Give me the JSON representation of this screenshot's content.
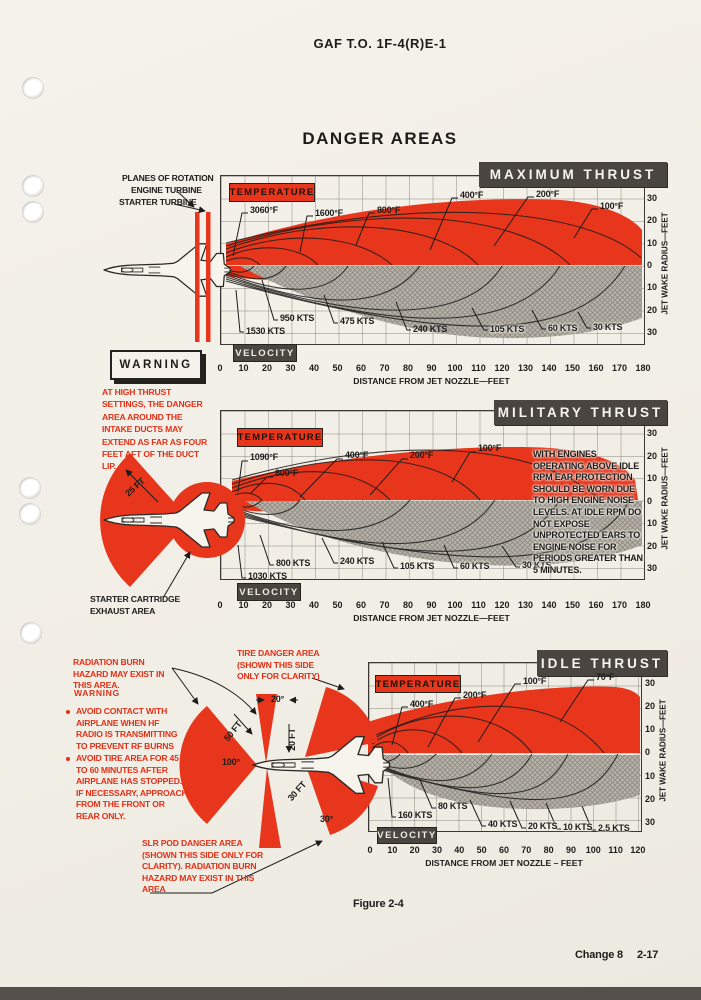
{
  "page": {
    "header": "GAF T.O. 1F-4(R)E-1",
    "title": "DANGER AREAS",
    "figure_caption": "Figure 2-4",
    "footer_change": "Change 8",
    "footer_page": "2-17"
  },
  "shared": {
    "temperature": "TEMPERATURE",
    "velocity": "VELOCITY",
    "x_axis_label": "DISTANCE FROM JET NOZZLE—FEET",
    "x_axis_label_idle": "DISTANCE FROM JET NOZZLE – FEET",
    "y_axis_label": "JET WAKE RADIUS—FEET"
  },
  "max": {
    "title": "MAXIMUM THRUST",
    "rotation_label_1": "PLANES OF ROTATION",
    "rotation_label_2": "ENGINE TURBINE",
    "rotation_label_3": "STARTER TURBINE",
    "temps": [
      "3060°F",
      "1600°F",
      "800°F",
      "400°F",
      "200°F",
      "100°F"
    ],
    "vels": [
      "1530 KTS",
      "950 KTS",
      "475 KTS",
      "240 KTS",
      "105 KTS",
      "60 KTS",
      "30 KTS"
    ],
    "x_ticks": [
      "0",
      "10",
      "20",
      "30",
      "40",
      "50",
      "60",
      "70",
      "80",
      "90",
      "100",
      "110",
      "120",
      "130",
      "140",
      "150",
      "160",
      "170",
      "180"
    ],
    "y_ticks": [
      "30",
      "20",
      "10",
      "0",
      "10",
      "20",
      "30"
    ],
    "warning_title": "WARNING",
    "warning_text": "AT HIGH THRUST SETTINGS, THE DANGER AREA AROUND THE INTAKE DUCTS MAY EXTEND AS FAR AS FOUR FEET AFT OF THE DUCT LIP."
  },
  "mil": {
    "title": "MILITARY THRUST",
    "temps": [
      "1090°F",
      "800°F",
      "400°F",
      "200°F",
      "100°F"
    ],
    "vels": [
      "1030 KTS",
      "800 KTS",
      "240 KTS",
      "105 KTS",
      "60 KTS",
      "30 KTS"
    ],
    "x_ticks": [
      "0",
      "10",
      "20",
      "30",
      "40",
      "50",
      "60",
      "70",
      "80",
      "90",
      "100",
      "110",
      "120",
      "130",
      "140",
      "150",
      "160",
      "170",
      "180"
    ],
    "y_ticks": [
      "30",
      "20",
      "10",
      "0",
      "10",
      "20",
      "30"
    ],
    "noise_note": "WITH ENGINES OPERATING ABOVE IDLE RPM EAR PROTECTION SHOULD BE WORN DUE TO HIGH ENGINE NOISE LEVELS. AT IDLE RPM DO NOT EXPOSE UNPROTECTED EARS TO ENGINE NOISE FOR PERIODS GREATER THAN 5 MINUTES.",
    "fan_radius_label": "25 FT",
    "starter_label_1": "STARTER CARTRIDGE",
    "starter_label_2": "EXHAUST AREA"
  },
  "idle": {
    "title": "IDLE THRUST",
    "temps": [
      "400°F",
      "200°F",
      "100°F",
      "70°F"
    ],
    "vels": [
      "160 KTS",
      "80 KTS",
      "40 KTS",
      "20 KTS",
      "10 KTS",
      "2.5 KTS"
    ],
    "x_ticks": [
      "0",
      "10",
      "20",
      "30",
      "40",
      "50",
      "60",
      "70",
      "80",
      "90",
      "100",
      "110",
      "120"
    ],
    "y_ticks": [
      "30",
      "20",
      "10",
      "0",
      "10",
      "20",
      "30"
    ],
    "radiation_label": "RADIATION BURN HAZARD MAY EXIST IN THIS AREA.",
    "tire_label": "TIRE DANGER AREA (SHOWN THIS SIDE ONLY FOR CLARITY)",
    "warning_title": "WARNING",
    "bullet_1": "AVOID CONTACT WITH AIRPLANE WHEN HF RADIO IS TRANSMITTING TO PREVENT RF BURNS",
    "bullet_2": "AVOID TIRE AREA FOR 45 TO 60 MINUTES AFTER AIRPLANE HAS STOPPED. IF NECESSARY, APPROACH FROM THE FRONT OR REAR ONLY.",
    "slr_label": "SLR POD DANGER AREA (SHOWN THIS SIDE ONLY FOR CLARITY). RADIATION BURN HAZARD MAY EXIST IN THIS AREA",
    "angle_tire": "20°",
    "angle_front": "100°",
    "angle_slr": "30°",
    "dist_front_fan": "50 FT",
    "dist_tire": "20 FT",
    "dist_slr": "30 FT"
  },
  "colors": {
    "danger_red": "#e8361c",
    "title_bar_gray": "#4b4541",
    "paper": "#f3f0e8",
    "hatch_gray": "#b7b3aa"
  },
  "chart_data": [
    {
      "type": "area",
      "title": "MAXIMUM THRUST",
      "xlabel": "DISTANCE FROM JET NOZZLE—FEET",
      "ylabel": "JET WAKE RADIUS—FEET",
      "xlim": [
        0,
        180
      ],
      "x_tick_step": 10,
      "ylim": [
        -30,
        30
      ],
      "y_tick_step": 10,
      "grid": true,
      "series": [
        {
          "name": "temperature_contours_F",
          "labels": [
            3060,
            1600,
            800,
            400,
            200,
            100
          ],
          "est_extent_ft": [
            12,
            32,
            55,
            90,
            135,
            180
          ]
        },
        {
          "name": "velocity_contours_kts",
          "labels": [
            1530,
            950,
            475,
            240,
            105,
            60,
            30
          ],
          "est_extent_ft": [
            12,
            26,
            48,
            78,
            112,
            140,
            172
          ]
        }
      ]
    },
    {
      "type": "area",
      "title": "MILITARY THRUST",
      "xlabel": "DISTANCE FROM JET NOZZLE—FEET",
      "ylabel": "JET WAKE RADIUS—FEET",
      "xlim": [
        0,
        180
      ],
      "x_tick_step": 10,
      "ylim": [
        -30,
        30
      ],
      "y_tick_step": 10,
      "grid": true,
      "series": [
        {
          "name": "temperature_contours_F",
          "labels": [
            1090,
            800,
            400,
            200,
            100
          ],
          "est_extent_ft": [
            12,
            30,
            70,
            105,
            155
          ]
        },
        {
          "name": "velocity_contours_kts",
          "labels": [
            1030,
            800,
            240,
            105,
            60,
            30
          ],
          "est_extent_ft": [
            12,
            30,
            75,
            110,
            138,
            170
          ]
        }
      ]
    },
    {
      "type": "area",
      "title": "IDLE THRUST",
      "xlabel": "DISTANCE FROM JET NOZZLE – FEET",
      "ylabel": "JET WAKE RADIUS—FEET",
      "xlim": [
        0,
        120
      ],
      "x_tick_step": 10,
      "ylim": [
        -30,
        30
      ],
      "y_tick_step": 10,
      "grid": true,
      "series": [
        {
          "name": "temperature_contours_F",
          "labels": [
            400,
            200,
            100,
            70
          ],
          "est_extent_ft": [
            16,
            40,
            70,
            100
          ]
        },
        {
          "name": "velocity_contours_kts",
          "labels": [
            160,
            80,
            40,
            20,
            10,
            2.5
          ],
          "est_extent_ft": [
            12,
            28,
            52,
            70,
            85,
            108
          ]
        }
      ]
    }
  ]
}
